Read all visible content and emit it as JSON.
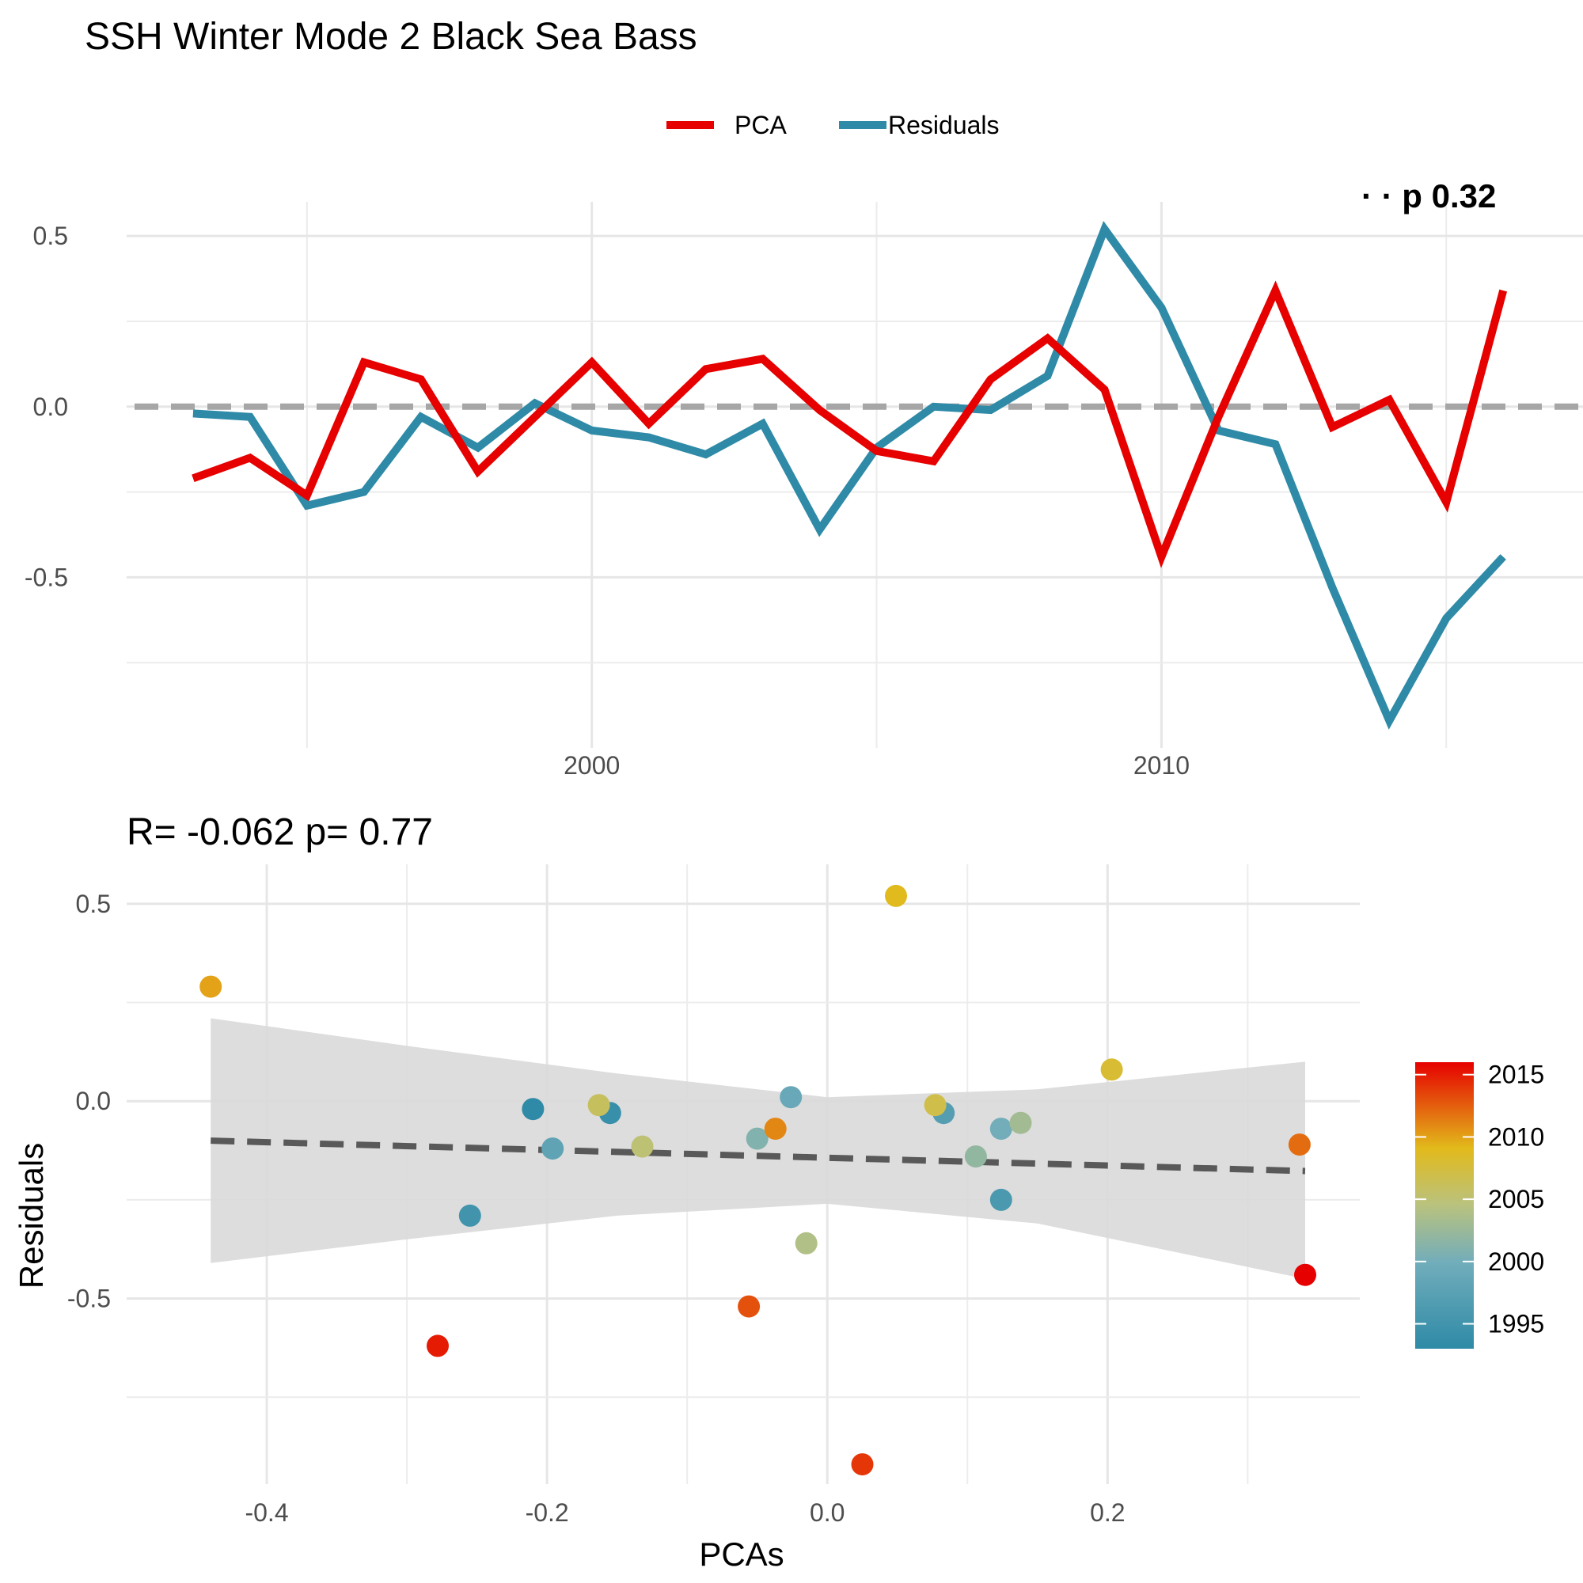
{
  "title": "SSH Winter Mode 2 Black Sea Bass",
  "colors": {
    "pca": "#E60000",
    "residuals": "#2E8AA6",
    "zero_line": "#A6A6A6",
    "fit_line": "#595959",
    "ribbon": "#D9D9D9",
    "scale_low": "#2E8AA6",
    "scale_mid_low": "#71ADBB",
    "scale_mid": "#B9C27F",
    "scale_mid_high": "#E2BA1B",
    "scale_high": "#E60000"
  },
  "legend": {
    "pca_label": "PCA",
    "residuals_label": "Residuals"
  },
  "top_annotation_fragment": "· · p  0.32",
  "bottom_annotation": "R= -0.062  p= 0.77",
  "chart_data": [
    {
      "type": "line",
      "title": "SSH Winter Mode 2 Black Sea Bass",
      "x": [
        1993,
        1994,
        1995,
        1996,
        1997,
        1998,
        1999,
        2000,
        2001,
        2002,
        2003,
        2004,
        2005,
        2006,
        2007,
        2008,
        2009,
        2010,
        2011,
        2012,
        2013,
        2014,
        2015,
        2016
      ],
      "series": [
        {
          "name": "PCA",
          "values": [
            -0.21,
            -0.15,
            -0.26,
            0.13,
            0.08,
            -0.19,
            -0.03,
            0.13,
            -0.05,
            0.11,
            0.14,
            -0.01,
            -0.13,
            -0.16,
            0.08,
            0.2,
            0.05,
            -0.44,
            -0.03,
            0.34,
            -0.06,
            0.02,
            -0.28,
            0.34
          ]
        },
        {
          "name": "Residuals",
          "values": [
            -0.02,
            -0.03,
            -0.29,
            -0.25,
            -0.03,
            -0.12,
            0.01,
            -0.07,
            -0.09,
            -0.14,
            -0.05,
            -0.36,
            -0.12,
            0.0,
            -0.01,
            0.09,
            0.52,
            0.29,
            -0.07,
            -0.11,
            -0.53,
            -0.92,
            -0.62,
            -0.44
          ]
        }
      ],
      "xlim": [
        1991,
        2017.4
      ],
      "ylim": [
        -1.0,
        0.6
      ],
      "xticks": [
        2000,
        2010
      ],
      "yticks": [
        0.5,
        0.0,
        -0.5
      ],
      "ytick_labels": [
        "0.5",
        "0.0",
        "-0.5"
      ],
      "hline": 0,
      "legend_position": "top",
      "grid": true
    },
    {
      "type": "scatter",
      "title": "R= -0.062  p= 0.77",
      "xlabel": "PCAs",
      "ylabel": "Residuals",
      "xlim": [
        -0.5,
        0.38
      ],
      "ylim": [
        -0.97,
        0.6
      ],
      "xticks": [
        -0.4,
        -0.2,
        0.0,
        0.2
      ],
      "xtick_labels": [
        "-0.4",
        "-0.2",
        "0.0",
        "0.2"
      ],
      "yticks": [
        0.5,
        0.0,
        -0.5
      ],
      "ytick_labels": [
        "0.5",
        "0.0",
        "-0.5"
      ],
      "points": [
        {
          "x": -0.21,
          "y": -0.02,
          "year": 1993
        },
        {
          "x": -0.155,
          "y": -0.03,
          "year": 1994
        },
        {
          "x": -0.255,
          "y": -0.29,
          "year": 1995
        },
        {
          "x": 0.124,
          "y": -0.25,
          "year": 1996
        },
        {
          "x": 0.083,
          "y": -0.03,
          "year": 1997
        },
        {
          "x": -0.196,
          "y": -0.12,
          "year": 1998
        },
        {
          "x": -0.026,
          "y": 0.01,
          "year": 1999
        },
        {
          "x": 0.124,
          "y": -0.07,
          "year": 2000
        },
        {
          "x": -0.05,
          "y": -0.095,
          "year": 2001
        },
        {
          "x": 0.106,
          "y": -0.14,
          "year": 2002
        },
        {
          "x": 0.138,
          "y": -0.055,
          "year": 2003
        },
        {
          "x": -0.015,
          "y": -0.36,
          "year": 2004
        },
        {
          "x": -0.132,
          "y": -0.115,
          "year": 2005
        },
        {
          "x": -0.163,
          "y": -0.01,
          "year": 2006
        },
        {
          "x": 0.077,
          "y": -0.01,
          "year": 2007
        },
        {
          "x": 0.203,
          "y": 0.08,
          "year": 2008
        },
        {
          "x": 0.049,
          "y": 0.52,
          "year": 2009
        },
        {
          "x": -0.44,
          "y": 0.29,
          "year": 2010
        },
        {
          "x": -0.037,
          "y": -0.07,
          "year": 2011
        },
        {
          "x": 0.337,
          "y": -0.11,
          "year": 2012
        },
        {
          "x": -0.056,
          "y": -0.52,
          "year": 2013
        },
        {
          "x": 0.025,
          "y": -0.92,
          "year": 2014
        },
        {
          "x": -0.278,
          "y": -0.62,
          "year": 2015
        },
        {
          "x": 0.341,
          "y": -0.44,
          "year": 2016
        }
      ],
      "fit": {
        "x": [
          -0.44,
          -0.3,
          -0.15,
          0.0,
          0.15,
          0.341
        ],
        "y": [
          -0.1,
          -0.113,
          -0.128,
          -0.143,
          -0.158,
          -0.177
        ],
        "lower": [
          -0.41,
          -0.35,
          -0.29,
          -0.26,
          -0.31,
          -0.45
        ],
        "upper": [
          0.21,
          0.14,
          0.07,
          0.01,
          0.03,
          0.1
        ]
      },
      "colorbar": {
        "label": "",
        "range": [
          1993,
          2016
        ],
        "ticks": [
          1995,
          2000,
          2005,
          2010,
          2015
        ],
        "tick_labels": [
          "1995",
          "2000",
          "2005",
          "2010",
          "2015"
        ]
      },
      "grid": true
    }
  ]
}
